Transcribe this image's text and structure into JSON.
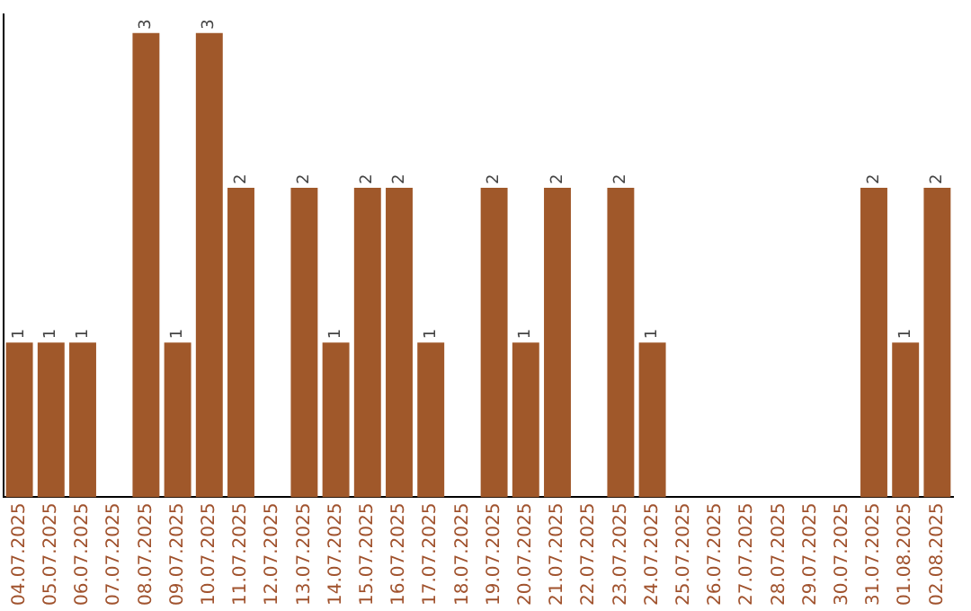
{
  "chart_data": {
    "type": "bar",
    "categories": [
      "04.07.2025",
      "05.07.2025",
      "06.07.2025",
      "07.07.2025",
      "08.07.2025",
      "09.07.2025",
      "10.07.2025",
      "11.07.2025",
      "12.07.2025",
      "13.07.2025",
      "14.07.2025",
      "15.07.2025",
      "16.07.2025",
      "17.07.2025",
      "18.07.2025",
      "19.07.2025",
      "20.07.2025",
      "21.07.2025",
      "22.07.2025",
      "23.07.2025",
      "24.07.2025",
      "25.07.2025",
      "26.07.2025",
      "27.07.2025",
      "28.07.2025",
      "29.07.2025",
      "30.07.2025",
      "31.07.2025",
      "01.08.2025",
      "02.08.2025"
    ],
    "values": [
      1,
      1,
      1,
      0,
      3,
      1,
      3,
      2,
      0,
      2,
      1,
      2,
      2,
      1,
      0,
      2,
      1,
      2,
      0,
      2,
      1,
      0,
      0,
      0,
      0,
      0,
      0,
      2,
      1,
      2
    ],
    "value_labels": [
      "1",
      "1",
      "1",
      null,
      "3",
      "1",
      "3",
      "2",
      null,
      "2",
      "1",
      "2",
      "2",
      "1",
      null,
      "2",
      "1",
      "2",
      null,
      "2",
      "1",
      null,
      null,
      null,
      null,
      null,
      null,
      "2",
      "1",
      "2"
    ],
    "color": "#a0582a",
    "grid": false,
    "legend": false
  }
}
